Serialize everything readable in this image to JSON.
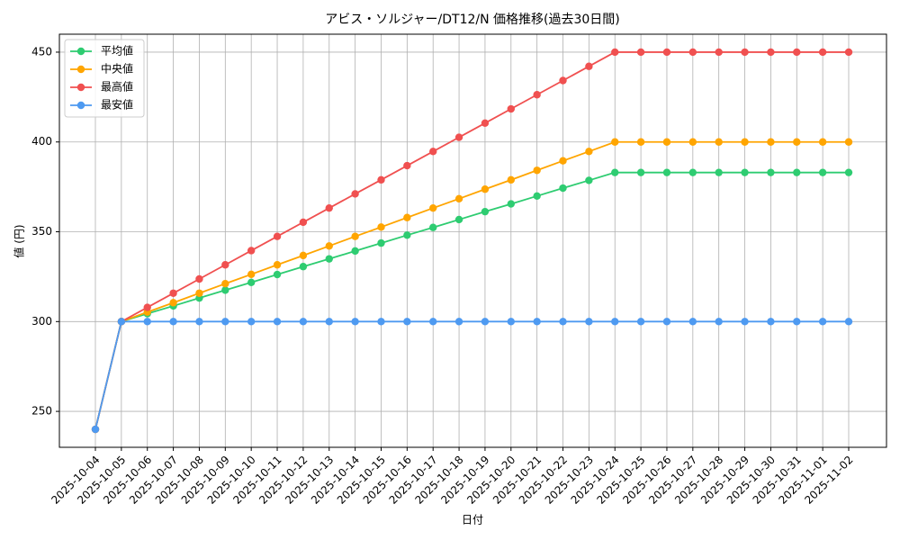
{
  "chart_data": {
    "type": "line",
    "title": "アビス・ソルジャー/DT12/N 価格推移(過去30日間)",
    "x_label": "日付",
    "y_label": "値 (円)",
    "categories": [
      "2025-10-04",
      "2025-10-05",
      "2025-10-06",
      "2025-10-07",
      "2025-10-08",
      "2025-10-09",
      "2025-10-10",
      "2025-10-11",
      "2025-10-12",
      "2025-10-13",
      "2025-10-14",
      "2025-10-15",
      "2025-10-16",
      "2025-10-17",
      "2025-10-18",
      "2025-10-19",
      "2025-10-20",
      "2025-10-21",
      "2025-10-22",
      "2025-10-23",
      "2025-10-24",
      "2025-10-25",
      "2025-10-26",
      "2025-10-27",
      "2025-10-28",
      "2025-10-29",
      "2025-10-30",
      "2025-10-31",
      "2025-11-01",
      "2025-11-02"
    ],
    "series": [
      {
        "name": "平均値",
        "color": "#2ecc71",
        "values": [
          240,
          300,
          304.4,
          308.7,
          313.1,
          317.5,
          321.8,
          326.2,
          330.6,
          334.9,
          339.3,
          343.7,
          348.1,
          352.4,
          356.8,
          361.2,
          365.5,
          369.9,
          374.3,
          378.6,
          383,
          383,
          383,
          383,
          383,
          383,
          383,
          383,
          383,
          383
        ]
      },
      {
        "name": "中央値",
        "color": "#ffa500",
        "values": [
          240,
          300,
          305.3,
          310.5,
          315.8,
          321.1,
          326.3,
          331.6,
          336.8,
          342.1,
          347.4,
          352.6,
          357.9,
          363.2,
          368.4,
          373.7,
          378.9,
          384.2,
          389.5,
          394.7,
          400,
          400,
          400,
          400,
          400,
          400,
          400,
          400,
          400,
          400
        ]
      },
      {
        "name": "最高値",
        "color": "#f05050",
        "values": [
          240,
          300,
          307.9,
          315.8,
          323.7,
          331.6,
          339.5,
          347.4,
          355.3,
          363.2,
          371.1,
          378.9,
          386.8,
          394.7,
          402.6,
          410.5,
          418.4,
          426.3,
          434.2,
          442.1,
          450,
          450,
          450,
          450,
          450,
          450,
          450,
          450,
          450,
          450
        ]
      },
      {
        "name": "最安値",
        "color": "#4e9af1",
        "values": [
          240,
          300,
          300,
          300,
          300,
          300,
          300,
          300,
          300,
          300,
          300,
          300,
          300,
          300,
          300,
          300,
          300,
          300,
          300,
          300,
          300,
          300,
          300,
          300,
          300,
          300,
          300,
          300,
          300,
          300
        ]
      }
    ],
    "ylim": [
      230,
      460
    ],
    "yticks": [
      250,
      300,
      350,
      400,
      450
    ],
    "grid": true,
    "legend": "upper left"
  }
}
